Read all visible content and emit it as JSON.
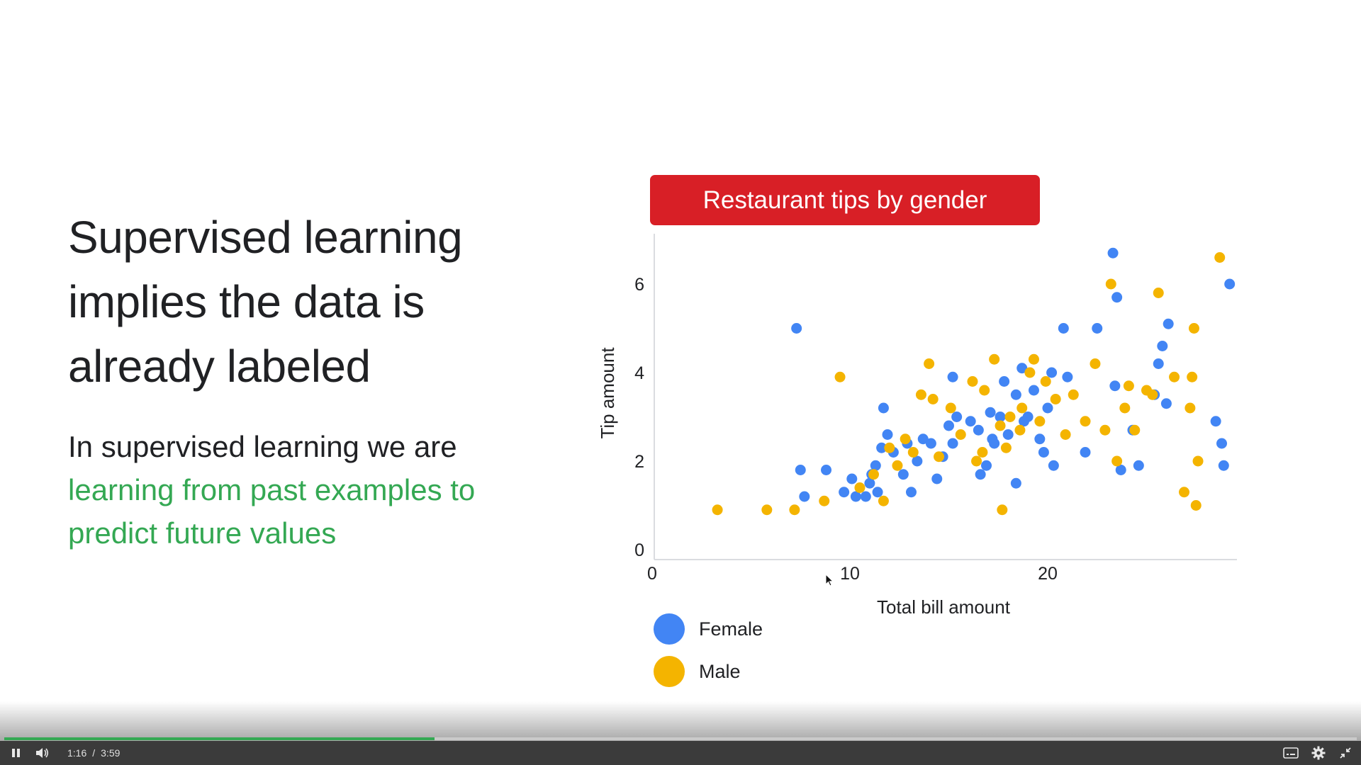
{
  "slide": {
    "headline": "Supervised learning implies the data is already labeled",
    "body_plain": "In supervised learning we are",
    "body_accent": "learning from past examples to predict future values",
    "colors": {
      "accent_green": "#34a853",
      "banner_red": "#d81f26",
      "female": "#4285f4",
      "male": "#f4b400"
    }
  },
  "chart_data": {
    "type": "scatter",
    "title": "Restaurant tips by gender",
    "xlabel": "Total bill amount",
    "ylabel": "Tip amount",
    "xlim": [
      0,
      29.5
    ],
    "ylim": [
      0,
      7
    ],
    "x_ticks": [
      "0",
      "10",
      "20"
    ],
    "y_ticks": [
      "0",
      "2",
      "4",
      "6"
    ],
    "grid": false,
    "legend_position": "bottom-left",
    "series": [
      {
        "name": "Female",
        "color": "#4285f4",
        "points": [
          [
            7.3,
            5.0
          ],
          [
            7.5,
            1.8
          ],
          [
            7.7,
            1.2
          ],
          [
            8.8,
            1.8
          ],
          [
            9.7,
            1.3
          ],
          [
            10.1,
            1.6
          ],
          [
            10.3,
            1.2
          ],
          [
            10.8,
            1.2
          ],
          [
            11.0,
            1.5
          ],
          [
            11.4,
            1.3
          ],
          [
            11.1,
            1.7
          ],
          [
            11.3,
            1.9
          ],
          [
            11.6,
            2.3
          ],
          [
            11.7,
            3.2
          ],
          [
            11.9,
            2.6
          ],
          [
            12.2,
            2.2
          ],
          [
            12.7,
            1.7
          ],
          [
            12.9,
            2.4
          ],
          [
            13.1,
            1.3
          ],
          [
            13.4,
            2.0
          ],
          [
            13.7,
            2.5
          ],
          [
            14.1,
            2.4
          ],
          [
            14.4,
            1.6
          ],
          [
            14.7,
            2.1
          ],
          [
            15.0,
            2.8
          ],
          [
            15.2,
            2.4
          ],
          [
            15.4,
            3.0
          ],
          [
            15.2,
            3.9
          ],
          [
            16.1,
            2.9
          ],
          [
            16.5,
            2.7
          ],
          [
            16.6,
            1.7
          ],
          [
            16.9,
            1.9
          ],
          [
            17.1,
            3.1
          ],
          [
            17.2,
            2.5
          ],
          [
            17.3,
            2.4
          ],
          [
            17.6,
            3.0
          ],
          [
            17.8,
            3.8
          ],
          [
            18.0,
            2.6
          ],
          [
            18.4,
            3.5
          ],
          [
            18.7,
            4.1
          ],
          [
            18.8,
            2.9
          ],
          [
            18.4,
            1.5
          ],
          [
            19.0,
            3.0
          ],
          [
            19.3,
            3.6
          ],
          [
            19.6,
            2.5
          ],
          [
            19.8,
            2.2
          ],
          [
            20.0,
            3.2
          ],
          [
            20.2,
            4.0
          ],
          [
            20.3,
            1.9
          ],
          [
            20.8,
            5.0
          ],
          [
            21.0,
            3.9
          ],
          [
            21.9,
            2.2
          ],
          [
            22.5,
            5.0
          ],
          [
            23.3,
            6.7
          ],
          [
            23.4,
            3.7
          ],
          [
            23.5,
            5.7
          ],
          [
            23.7,
            1.8
          ],
          [
            24.3,
            2.7
          ],
          [
            24.6,
            1.9
          ],
          [
            25.4,
            3.5
          ],
          [
            25.6,
            4.2
          ],
          [
            25.8,
            4.6
          ],
          [
            26.0,
            3.3
          ],
          [
            26.1,
            5.1
          ],
          [
            28.5,
            2.9
          ],
          [
            28.8,
            2.4
          ],
          [
            28.9,
            1.9
          ],
          [
            29.2,
            6.0
          ]
        ]
      },
      {
        "name": "Male",
        "color": "#f4b400",
        "points": [
          [
            3.3,
            0.9
          ],
          [
            5.8,
            0.9
          ],
          [
            7.2,
            0.9
          ],
          [
            8.7,
            1.1
          ],
          [
            9.5,
            3.9
          ],
          [
            10.5,
            1.4
          ],
          [
            11.2,
            1.7
          ],
          [
            11.7,
            1.1
          ],
          [
            12.0,
            2.3
          ],
          [
            12.4,
            1.9
          ],
          [
            12.8,
            2.5
          ],
          [
            13.2,
            2.2
          ],
          [
            13.6,
            3.5
          ],
          [
            14.0,
            4.2
          ],
          [
            14.2,
            3.4
          ],
          [
            14.5,
            2.1
          ],
          [
            15.1,
            3.2
          ],
          [
            15.6,
            2.6
          ],
          [
            16.2,
            3.8
          ],
          [
            16.4,
            2.0
          ],
          [
            16.7,
            2.2
          ],
          [
            16.8,
            3.6
          ],
          [
            17.3,
            4.3
          ],
          [
            17.6,
            2.8
          ],
          [
            17.7,
            0.9
          ],
          [
            17.9,
            2.3
          ],
          [
            18.1,
            3.0
          ],
          [
            18.6,
            2.7
          ],
          [
            18.7,
            3.2
          ],
          [
            19.1,
            4.0
          ],
          [
            19.3,
            4.3
          ],
          [
            19.6,
            2.9
          ],
          [
            19.9,
            3.8
          ],
          [
            20.4,
            3.4
          ],
          [
            20.9,
            2.6
          ],
          [
            21.3,
            3.5
          ],
          [
            21.9,
            2.9
          ],
          [
            22.4,
            4.2
          ],
          [
            22.9,
            2.7
          ],
          [
            23.2,
            6.0
          ],
          [
            23.5,
            2.0
          ],
          [
            23.9,
            3.2
          ],
          [
            24.1,
            3.7
          ],
          [
            24.4,
            2.7
          ],
          [
            25.0,
            3.6
          ],
          [
            25.3,
            3.5
          ],
          [
            25.6,
            5.8
          ],
          [
            26.4,
            3.9
          ],
          [
            26.9,
            1.3
          ],
          [
            27.2,
            3.2
          ],
          [
            27.3,
            3.9
          ],
          [
            27.4,
            5.0
          ],
          [
            27.5,
            1.0
          ],
          [
            27.6,
            2.0
          ],
          [
            28.7,
            6.6
          ]
        ]
      }
    ]
  },
  "player": {
    "current_time": "1:16",
    "separator": "/",
    "duration": "3:59",
    "progress_fraction": 0.318,
    "icons": [
      "pause-icon",
      "volume-icon",
      "captions-icon",
      "settings-icon",
      "exit-fullscreen-icon"
    ]
  }
}
